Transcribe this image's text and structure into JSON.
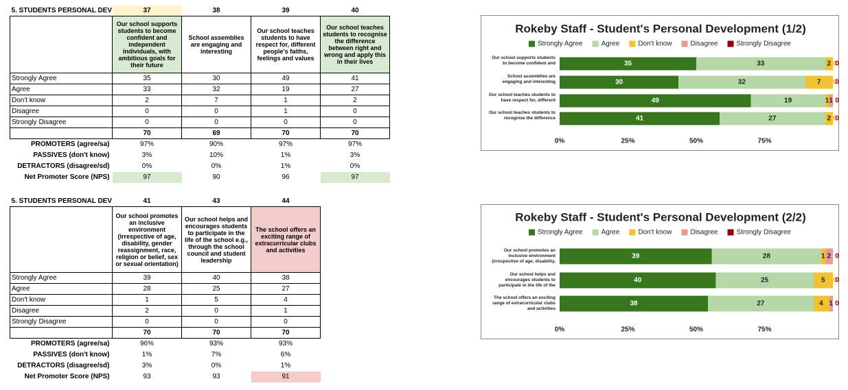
{
  "tables": [
    {
      "title": "5. STUDENTS PERSONAL DEV",
      "columns": [
        37,
        38,
        39,
        40
      ],
      "questions": [
        "Our school supports students to become confident and independent individuals, with ambitious goals for their future",
        "School assemblies are engaging and interesting",
        "Our school teaches students to have respect for, different people's faiths, feelings and values",
        "Our school teaches students to recognise the difference between right and wrong and apply this in their lives"
      ],
      "rows": [
        {
          "label": "Strongly Agree",
          "values": [
            35,
            30,
            49,
            41
          ]
        },
        {
          "label": "Agree",
          "values": [
            33,
            32,
            19,
            27
          ]
        },
        {
          "label": "Don't know",
          "values": [
            2,
            7,
            1,
            2
          ]
        },
        {
          "label": "Disagree",
          "values": [
            0,
            0,
            1,
            0
          ]
        },
        {
          "label": "Strongly Disagree",
          "values": [
            0,
            0,
            0,
            0
          ]
        }
      ],
      "totals": [
        70,
        69,
        70,
        70
      ],
      "metrics": [
        {
          "label": "PROMOTERS (agree/sa)",
          "values": [
            "97%",
            "90%",
            "97%",
            "97%"
          ]
        },
        {
          "label": "PASSIVES (don't know)",
          "values": [
            "3%",
            "10%",
            "1%",
            "3%"
          ]
        },
        {
          "label": "DETRACTORS (disagree/sd)",
          "values": [
            "0%",
            "0%",
            "1%",
            "0%"
          ]
        },
        {
          "label": "Net Promoter Score (NPS)",
          "values": [
            97,
            90,
            96,
            97
          ]
        }
      ]
    },
    {
      "title": "5. STUDENTS PERSONAL DEV",
      "columns": [
        41,
        43,
        44
      ],
      "questions": [
        "Our school promotes an inclusive environment (irrespective of age, disability, gender reassignment, race, religion or belief, sex or sexual orientation)",
        "Our school helps and encourages students to participate in the life of the school e.g., through the school council and student leadership",
        "The school offers an exciting range of extracurricular clubs and activities"
      ],
      "rows": [
        {
          "label": "Strongly Agree",
          "values": [
            39,
            40,
            38
          ]
        },
        {
          "label": "Agree",
          "values": [
            28,
            25,
            27
          ]
        },
        {
          "label": "Don't know",
          "values": [
            1,
            5,
            4
          ]
        },
        {
          "label": "Disagree",
          "values": [
            2,
            0,
            1
          ]
        },
        {
          "label": "Strongly Disagree",
          "values": [
            0,
            0,
            0
          ]
        }
      ],
      "totals": [
        70,
        70,
        70
      ],
      "metrics": [
        {
          "label": "PROMOTERS (agree/sa)",
          "values": [
            "96%",
            "93%",
            "93%"
          ]
        },
        {
          "label": "PASSIVES (don't know)",
          "values": [
            "1%",
            "7%",
            "6%"
          ]
        },
        {
          "label": "DETRACTORS (disagree/sd)",
          "values": [
            "3%",
            "0%",
            "1%"
          ]
        },
        {
          "label": "Net Promoter Score (NPS)",
          "values": [
            93,
            93,
            91
          ]
        }
      ]
    }
  ],
  "chart_data": [
    {
      "type": "stacked_bar_percent",
      "title": "Rokeby Staff - Student's Personal Development (1/2)",
      "categories": [
        "Our school supports students to become confident and",
        "School assemblies are engaging and interesting",
        "Our school teaches students to have respect for, different",
        "Our school teaches students to recognise the difference"
      ],
      "series": [
        {
          "name": "Strongly Agree",
          "color": "#38761d",
          "values": [
            35,
            30,
            49,
            41
          ]
        },
        {
          "name": "Agree",
          "color": "#b6d7a8",
          "values": [
            33,
            32,
            19,
            27
          ]
        },
        {
          "name": "Don't know",
          "color": "#f1c232",
          "values": [
            2,
            7,
            1,
            2
          ]
        },
        {
          "name": "Disagree",
          "color": "#ea9999",
          "values": [
            0,
            0,
            1,
            0
          ]
        },
        {
          "name": "Strongly Disagree",
          "color": "#990000",
          "values": [
            0,
            0,
            0,
            0
          ]
        }
      ],
      "xlim": [
        0,
        100
      ],
      "xticks": [
        {
          "value": 0,
          "label": "0%"
        },
        {
          "value": 25,
          "label": "25%"
        },
        {
          "value": 50,
          "label": "50%"
        },
        {
          "value": 75,
          "label": "75%"
        }
      ]
    },
    {
      "type": "stacked_bar_percent",
      "title": "Rokeby Staff - Student's Personal Development (2/2)",
      "categories": [
        "Our school promotes an inclusive environment (irrespective of age, disability,",
        "Our school helps and encourages students to participate in the life of the",
        "The school offers an exciting range of extracurricular clubs and activities"
      ],
      "series": [
        {
          "name": "Strongly Agree",
          "color": "#38761d",
          "values": [
            39,
            40,
            38
          ]
        },
        {
          "name": "Agree",
          "color": "#b6d7a8",
          "values": [
            28,
            25,
            27
          ]
        },
        {
          "name": "Don't know",
          "color": "#f1c232",
          "values": [
            1,
            5,
            4
          ]
        },
        {
          "name": "Disagree",
          "color": "#ea9999",
          "values": [
            2,
            0,
            1
          ]
        },
        {
          "name": "Strongly Disagree",
          "color": "#990000",
          "values": [
            0,
            0,
            0
          ]
        }
      ],
      "xlim": [
        0,
        100
      ],
      "xticks": [
        {
          "value": 0,
          "label": "0%"
        },
        {
          "value": 25,
          "label": "25%"
        },
        {
          "value": 50,
          "label": "50%"
        },
        {
          "value": 75,
          "label": "75%"
        }
      ]
    }
  ]
}
